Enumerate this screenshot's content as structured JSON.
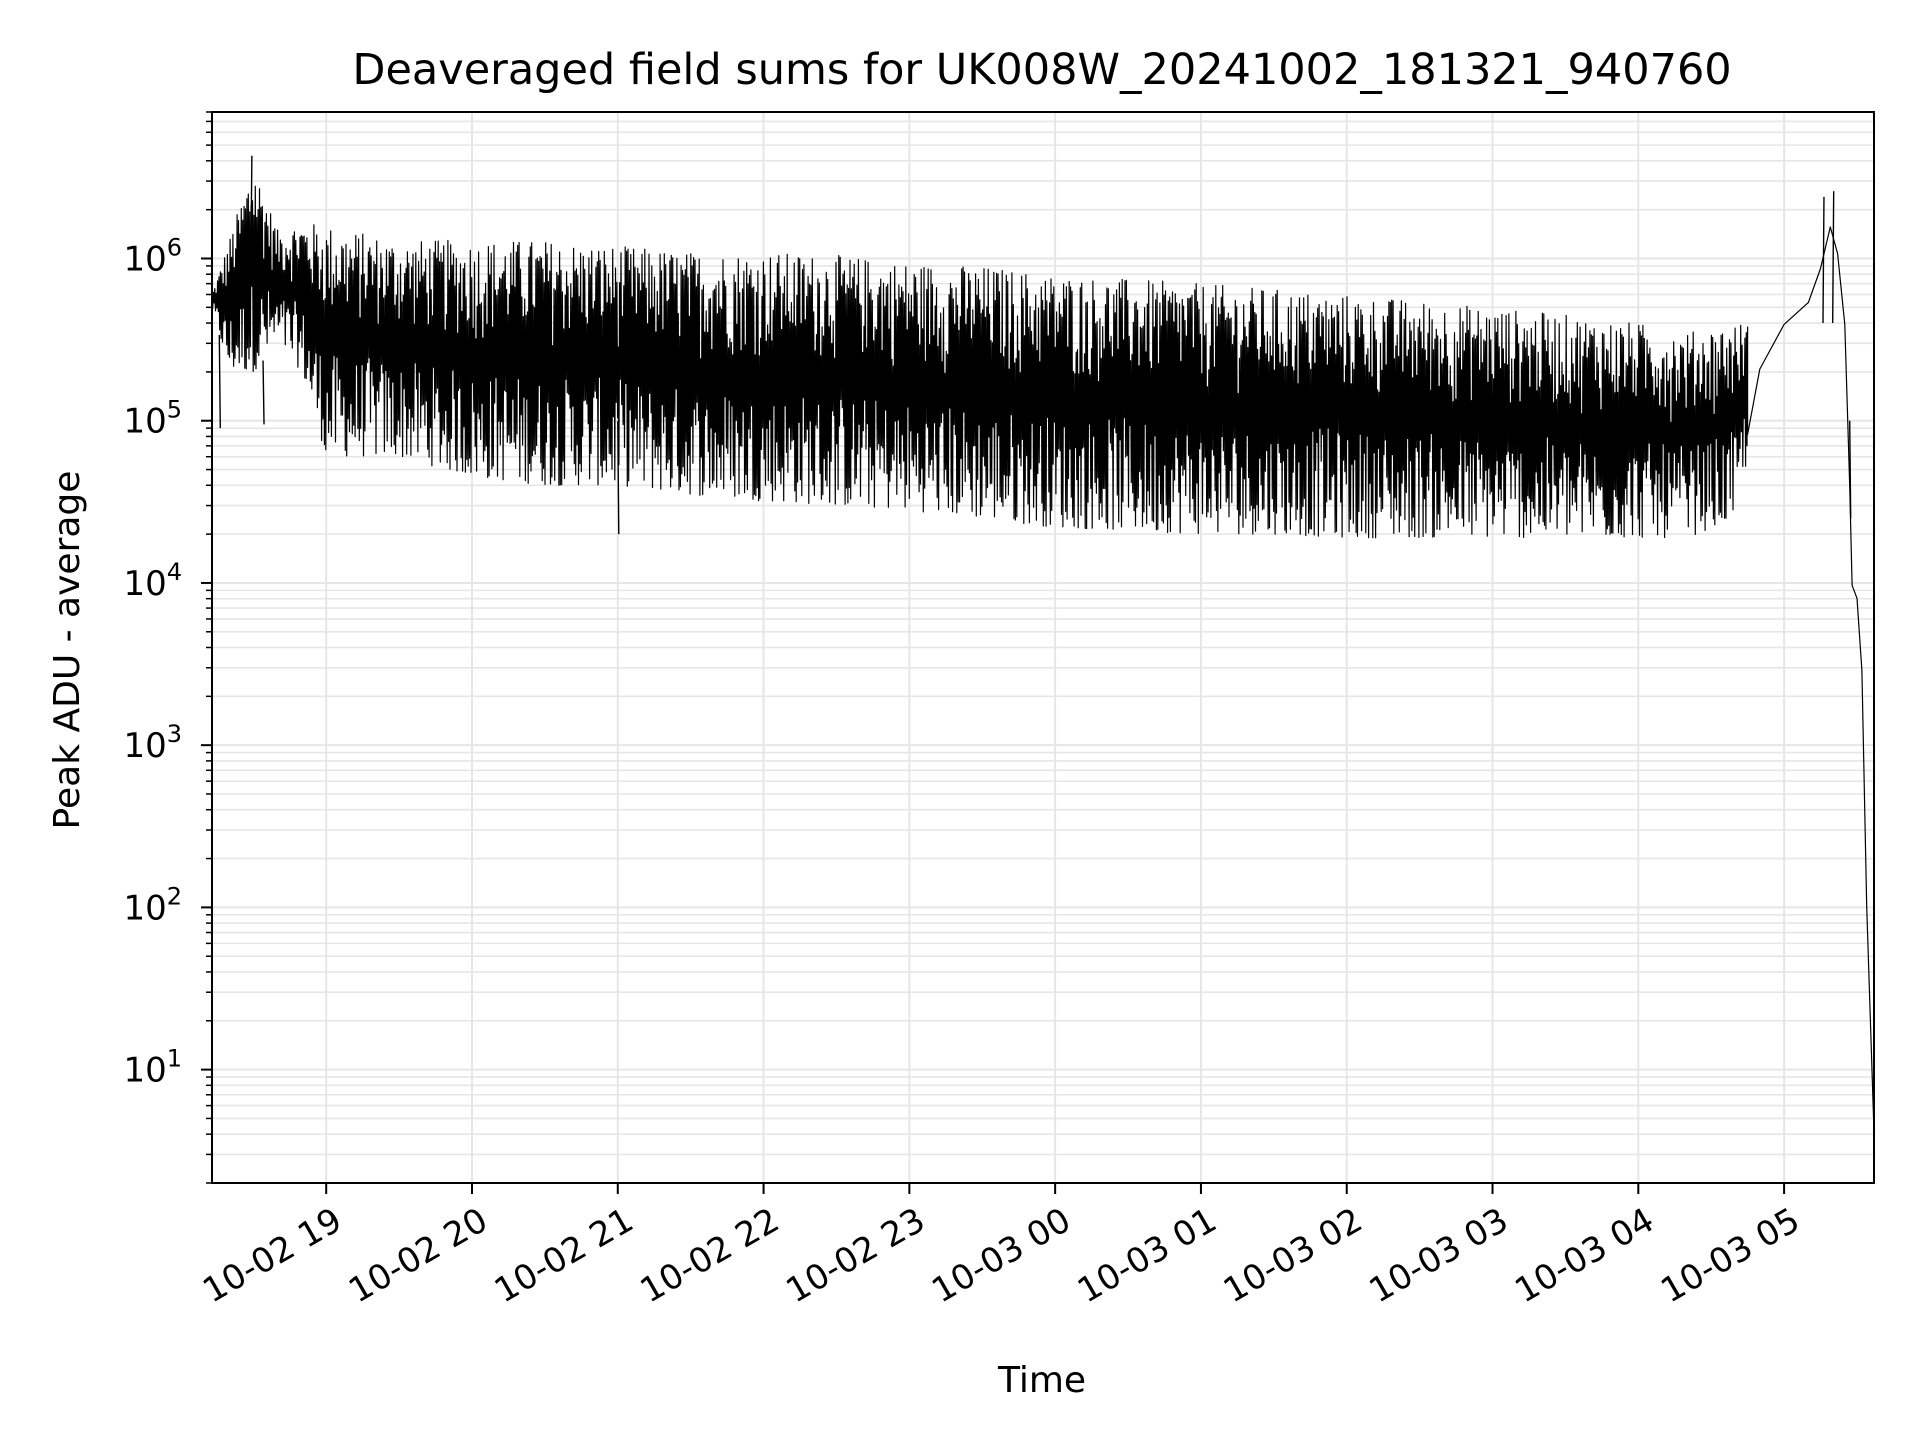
{
  "chart_data": {
    "type": "line",
    "title": "Deaveraged field sums for UK008W_20241002_181321_940760",
    "xlabel": "Time",
    "ylabel": "Peak ADU - average",
    "yscale": "log",
    "xlim": [
      "2024-10-02 18:13",
      "2024-10-03 05:37"
    ],
    "ylim": [
      2,
      8000000
    ],
    "grid": "on (major and minor)",
    "line_color": "#000000",
    "grid_color": "#e6e6e6",
    "x_ticks": [
      {
        "value": "2024-10-02 19:00",
        "label": "10-02 19"
      },
      {
        "value": "2024-10-02 20:00",
        "label": "10-02 20"
      },
      {
        "value": "2024-10-02 21:00",
        "label": "10-02 21"
      },
      {
        "value": "2024-10-02 22:00",
        "label": "10-02 22"
      },
      {
        "value": "2024-10-02 23:00",
        "label": "10-02 23"
      },
      {
        "value": "2024-10-03 00:00",
        "label": "10-03 00"
      },
      {
        "value": "2024-10-03 01:00",
        "label": "10-03 01"
      },
      {
        "value": "2024-10-03 02:00",
        "label": "10-03 02"
      },
      {
        "value": "2024-10-03 03:00",
        "label": "10-03 03"
      },
      {
        "value": "2024-10-03 04:00",
        "label": "10-03 04"
      },
      {
        "value": "2024-10-03 05:00",
        "label": "10-03 05"
      }
    ],
    "y_ticks": [
      {
        "value": 10,
        "base": "10",
        "exp": "1"
      },
      {
        "value": 100,
        "base": "10",
        "exp": "2"
      },
      {
        "value": 1000,
        "base": "10",
        "exp": "3"
      },
      {
        "value": 10000,
        "base": "10",
        "exp": "4"
      },
      {
        "value": 100000,
        "base": "10",
        "exp": "5"
      },
      {
        "value": 1000000,
        "base": "10",
        "exp": "6"
      }
    ],
    "envelope": [
      {
        "t": "2024-10-02 18:13",
        "low": 500000,
        "high": 600000
      },
      {
        "t": "2024-10-02 18:20",
        "low": 200000,
        "high": 1300000
      },
      {
        "t": "2024-10-02 18:30",
        "low": 200000,
        "high": 4000000
      },
      {
        "t": "2024-10-02 18:40",
        "low": 300000,
        "high": 1500000
      },
      {
        "t": "2024-10-02 18:50",
        "low": 200000,
        "high": 1700000
      },
      {
        "t": "2024-10-02 19:00",
        "low": 60000,
        "high": 1600000
      },
      {
        "t": "2024-10-02 19:30",
        "low": 60000,
        "high": 1300000
      },
      {
        "t": "2024-10-02 20:00",
        "low": 45000,
        "high": 1300000
      },
      {
        "t": "2024-10-02 20:30",
        "low": 40000,
        "high": 1300000
      },
      {
        "t": "2024-10-02 21:00",
        "low": 40000,
        "high": 1200000
      },
      {
        "t": "2024-10-02 21:30",
        "low": 35000,
        "high": 1100000
      },
      {
        "t": "2024-10-02 22:00",
        "low": 32000,
        "high": 1100000
      },
      {
        "t": "2024-10-02 22:30",
        "low": 30000,
        "high": 1050000
      },
      {
        "t": "2024-10-02 23:00",
        "low": 28000,
        "high": 950000
      },
      {
        "t": "2024-10-02 23:30",
        "low": 25000,
        "high": 900000
      },
      {
        "t": "2024-10-03 00:00",
        "low": 22000,
        "high": 800000
      },
      {
        "t": "2024-10-03 00:30",
        "low": 21000,
        "high": 750000
      },
      {
        "t": "2024-10-03 01:00",
        "low": 20000,
        "high": 700000
      },
      {
        "t": "2024-10-03 01:30",
        "low": 20000,
        "high": 650000
      },
      {
        "t": "2024-10-03 02:00",
        "low": 19000,
        "high": 600000
      },
      {
        "t": "2024-10-03 02:30",
        "low": 19000,
        "high": 550000
      },
      {
        "t": "2024-10-03 03:00",
        "low": 19000,
        "high": 500000
      },
      {
        "t": "2024-10-03 03:30",
        "low": 19000,
        "high": 450000
      },
      {
        "t": "2024-10-03 04:00",
        "low": 19000,
        "high": 400000
      },
      {
        "t": "2024-10-03 04:20",
        "low": 19000,
        "high": 350000
      },
      {
        "t": "2024-10-03 04:40",
        "low": 25000,
        "high": 400000
      },
      {
        "t": "2024-10-03 04:45",
        "low": 60000,
        "high": 400000
      }
    ],
    "trend": [
      {
        "t": "2024-10-03 04:45",
        "y": 80000
      },
      {
        "t": "2024-10-03 04:50",
        "y": 200000
      },
      {
        "t": "2024-10-03 05:00",
        "y": 400000
      },
      {
        "t": "2024-10-03 05:10",
        "y": 550000
      },
      {
        "t": "2024-10-03 05:15",
        "y": 900000
      },
      {
        "t": "2024-10-03 05:19",
        "y": 1500000
      },
      {
        "t": "2024-10-03 05:22",
        "y": 1100000
      },
      {
        "t": "2024-10-03 05:25",
        "y": 400000
      },
      {
        "t": "2024-10-03 05:27",
        "y": 40000
      },
      {
        "t": "2024-10-03 05:28",
        "y": 10000
      },
      {
        "t": "2024-10-03 05:30",
        "y": 8000
      },
      {
        "t": "2024-10-03 05:32",
        "y": 3000
      },
      {
        "t": "2024-10-03 05:34",
        "y": 100
      },
      {
        "t": "2024-10-03 05:37",
        "y": 4
      }
    ],
    "spikes": [
      {
        "t": "2024-10-02 18:29",
        "y": 4300000
      },
      {
        "t": "2024-10-03 05:16",
        "y": 2400000
      },
      {
        "t": "2024-10-03 05:20",
        "y": 2600000
      },
      {
        "t": "2024-10-02 18:16",
        "y": 90000
      },
      {
        "t": "2024-10-02 18:34",
        "y": 95000
      },
      {
        "t": "2024-10-02 21:00",
        "y": 20000
      },
      {
        "t": "2024-10-03 05:27",
        "y": 25000
      }
    ]
  }
}
